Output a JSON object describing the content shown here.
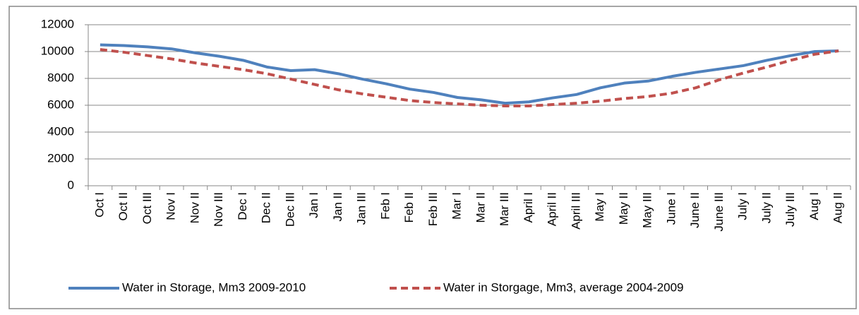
{
  "chart_data": {
    "type": "line",
    "categories": [
      "Oct I",
      "Oct II",
      "Oct III",
      "Nov I",
      "Nov II",
      "Nov III",
      "Dec I",
      "Dec II",
      "Dec III",
      "Jan I",
      "Jan II",
      "Jan III",
      "Feb I",
      "Feb II",
      "Feb III",
      "Mar I",
      "Mar II",
      "Mar III",
      "April I",
      "April II",
      "April III",
      "May I",
      "May II",
      "May III",
      "June I",
      "June II",
      "June III",
      "July I",
      "July II",
      "July III",
      "Aug I",
      "Aug II"
    ],
    "series": [
      {
        "name": "Water in Storage, Mm3 2009-2010",
        "color": "#4f81bd",
        "dash": "solid",
        "values": [
          10500,
          10450,
          10350,
          10200,
          9900,
          9650,
          9350,
          8850,
          8580,
          8650,
          8350,
          7950,
          7600,
          7200,
          6950,
          6580,
          6400,
          6150,
          6250,
          6550,
          6800,
          7300,
          7650,
          7800,
          8150,
          8450,
          8700,
          8950,
          9350,
          9700,
          10000,
          10050
        ]
      },
      {
        "name": "Water in Storgage, Mm3, average 2004-2009",
        "color": "#c0504d",
        "dash": "dashed",
        "values": [
          10150,
          9950,
          9700,
          9450,
          9150,
          8900,
          8650,
          8350,
          7950,
          7550,
          7150,
          6850,
          6600,
          6350,
          6200,
          6100,
          6000,
          5950,
          5950,
          6050,
          6150,
          6300,
          6500,
          6650,
          6900,
          7300,
          7900,
          8400,
          8850,
          9350,
          9800,
          10050
        ]
      }
    ],
    "ylim": [
      0,
      12000
    ],
    "yticks": [
      0,
      2000,
      4000,
      6000,
      8000,
      10000,
      12000
    ],
    "grid": true,
    "legend": "bottom"
  }
}
